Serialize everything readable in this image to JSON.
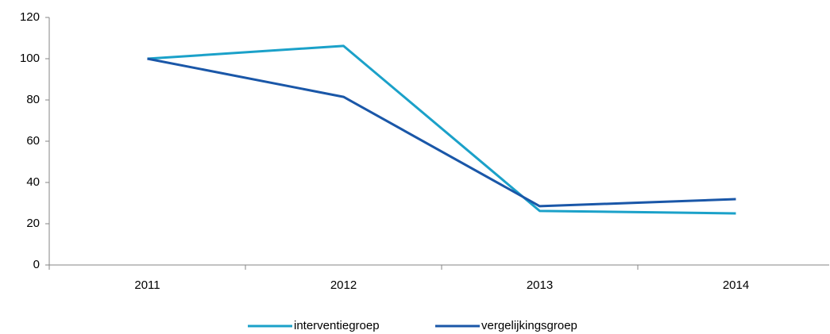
{
  "chart_data": {
    "type": "line",
    "categories": [
      "2011",
      "2012",
      "2013",
      "2014"
    ],
    "series": [
      {
        "name": "interventiegroep",
        "color": "#1ba1c9",
        "values": [
          100,
          106.2,
          26.2,
          25
        ]
      },
      {
        "name": "vergelijkingsgroep",
        "color": "#1a57a8",
        "values": [
          100,
          81.5,
          28.5,
          31.9
        ]
      }
    ],
    "ylim": [
      0,
      120
    ],
    "yticks": [
      0,
      20,
      40,
      60,
      80,
      100,
      120
    ],
    "grid": false,
    "legend": "bottom"
  }
}
